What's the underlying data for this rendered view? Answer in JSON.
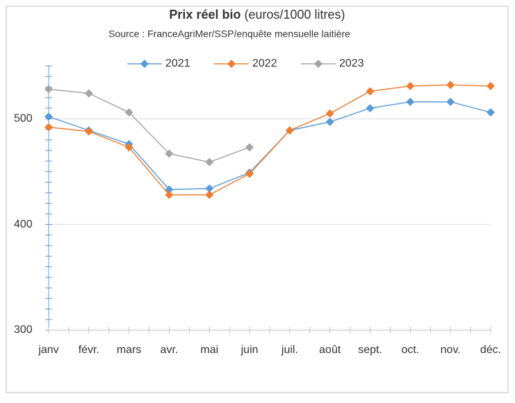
{
  "chart_data": {
    "type": "line",
    "title": "Prix réel bio",
    "title_unit": "(euros/1000 litres)",
    "subtitle": "Source : FranceAgriMer/SSP/enquête mensuelle laitière",
    "categories": [
      "janv",
      "févr.",
      "mars",
      "avr.",
      "mai",
      "juin",
      "juil.",
      "août",
      "sept.",
      "oct.",
      "nov.",
      "déc."
    ],
    "series": [
      {
        "name": "2021",
        "color": "#5b9bd5",
        "values": [
          502,
          489,
          476,
          433,
          434,
          449,
          489,
          497,
          510,
          516,
          516,
          506
        ]
      },
      {
        "name": "2022",
        "color": "#ed7d31",
        "values": [
          492,
          488,
          473,
          428,
          428,
          448,
          489,
          505,
          526,
          531,
          532,
          531
        ]
      },
      {
        "name": "2023",
        "color": "#a5a5a5",
        "values": [
          528,
          524,
          506,
          467,
          459,
          473,
          null,
          null,
          null,
          null,
          null,
          null
        ]
      }
    ],
    "ylim": [
      300,
      550
    ],
    "yticks": [
      300,
      400,
      500
    ],
    "grid": true,
    "legend": "top"
  }
}
